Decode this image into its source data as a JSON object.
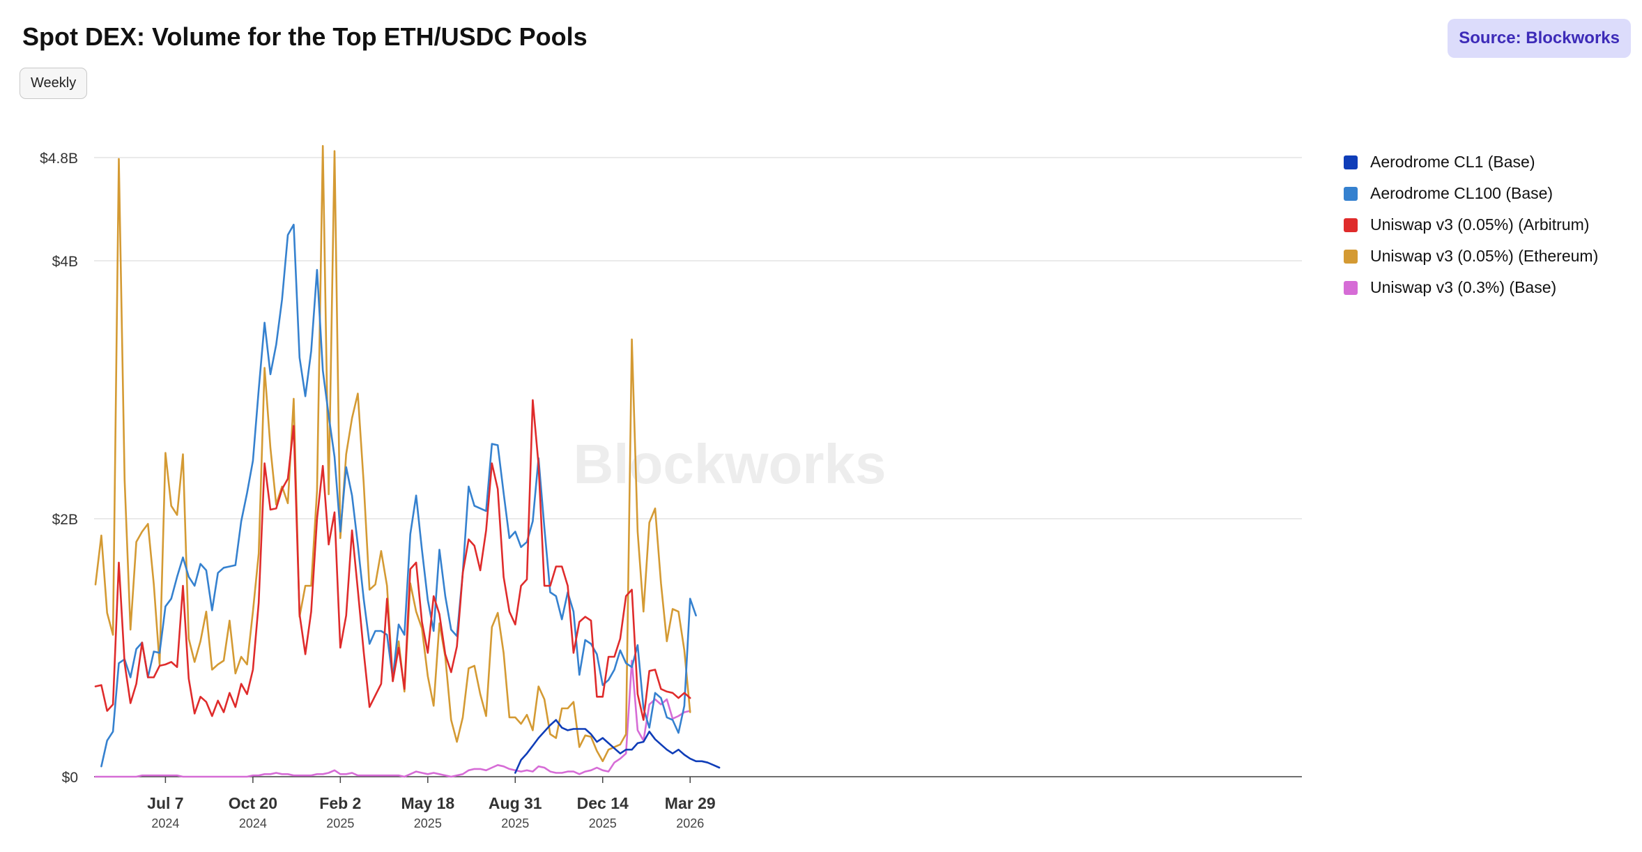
{
  "header": {
    "title": "Spot DEX: Volume for the Top ETH/USDC Pools",
    "source": "Source: Blockworks",
    "frequency_button": "Weekly",
    "watermark": "Blockworks"
  },
  "chart_data": {
    "type": "line",
    "title": "Spot DEX: Volume for the Top ETH/USDC Pools",
    "xlabel": "",
    "ylabel": "",
    "x_start": "2024-04-14",
    "x_interval_days": 7,
    "ylim": [
      0,
      4800000000
    ],
    "yticks": [
      {
        "value": 0,
        "label": "$0"
      },
      {
        "value": 2000000000,
        "label": "$2B"
      },
      {
        "value": 4000000000,
        "label": "$4B"
      },
      {
        "value": 4800000000,
        "label": "$4.8B"
      }
    ],
    "xticks": [
      {
        "date": "2024-07-07",
        "label": "Jul 7",
        "year": "2024"
      },
      {
        "date": "2024-10-20",
        "label": "Oct 20",
        "year": "2024"
      },
      {
        "date": "2025-02-02",
        "label": "Feb 2",
        "year": "2025"
      },
      {
        "date": "2025-05-18",
        "label": "May 18",
        "year": "2025"
      },
      {
        "date": "2025-08-31",
        "label": "Aug 31",
        "year": "2025"
      },
      {
        "date": "2025-12-14",
        "label": "Dec 14",
        "year": "2025"
      },
      {
        "date": "2026-03-29",
        "label": "Mar 29",
        "year": "2026"
      }
    ],
    "grid": true,
    "legend_position": "right",
    "unit": "USD",
    "series": [
      {
        "name": "Aerodrome CL1 (Base)",
        "color": "#0f3db8",
        "start_index": 72,
        "values": [
          0.03,
          0.13,
          0.18,
          0.24,
          0.3,
          0.35,
          0.4,
          0.44,
          0.38,
          0.36,
          0.37,
          0.37,
          0.37,
          0.33,
          0.27,
          0.3,
          0.26,
          0.22,
          0.18,
          0.21,
          0.21,
          0.26,
          0.27,
          0.35,
          0.29,
          0.25,
          0.21,
          0.18,
          0.21,
          0.17,
          0.14,
          0.12,
          0.12,
          0.11,
          0.09,
          0.07
        ]
      },
      {
        "name": "Aerodrome CL100 (Base)",
        "color": "#3581cf",
        "start_index": 1,
        "values": [
          0.08,
          0.28,
          0.35,
          0.88,
          0.91,
          0.77,
          0.99,
          1.04,
          0.77,
          0.97,
          0.96,
          1.32,
          1.38,
          1.55,
          1.7,
          1.55,
          1.48,
          1.65,
          1.6,
          1.29,
          1.58,
          1.62,
          1.63,
          1.64,
          1.98,
          2.2,
          2.45,
          3.0,
          3.52,
          3.12,
          3.35,
          3.7,
          4.2,
          4.28,
          3.25,
          2.95,
          3.3,
          3.93,
          3.15,
          2.8,
          2.48,
          1.9,
          2.4,
          2.18,
          1.8,
          1.38,
          1.03,
          1.13,
          1.13,
          1.1,
          0.76,
          1.18,
          1.1,
          1.88,
          2.18,
          1.76,
          1.37,
          1.13,
          1.76,
          1.4,
          1.14,
          1.09,
          1.58,
          2.25,
          2.1,
          2.08,
          2.06,
          2.58,
          2.57,
          2.2,
          1.85,
          1.9,
          1.78,
          1.82,
          1.98,
          2.47,
          1.93,
          1.43,
          1.4,
          1.22,
          1.43,
          1.28,
          0.79,
          1.06,
          1.03,
          0.95,
          0.71,
          0.75,
          0.83,
          0.98,
          0.88,
          0.85,
          1.02,
          0.53,
          0.38,
          0.65,
          0.61,
          0.46,
          0.44,
          0.34,
          0.55,
          1.38,
          1.25
        ]
      },
      {
        "name": "Uniswap v3 (0.05%) (Arbitrum)",
        "color": "#df2b2b",
        "start_index": 0,
        "values": [
          0.7,
          0.71,
          0.51,
          0.56,
          1.66,
          0.88,
          0.57,
          0.72,
          1.04,
          0.77,
          0.77,
          0.86,
          0.87,
          0.89,
          0.85,
          1.48,
          0.76,
          0.49,
          0.62,
          0.58,
          0.47,
          0.59,
          0.5,
          0.65,
          0.54,
          0.72,
          0.64,
          0.83,
          1.35,
          2.43,
          2.07,
          2.08,
          2.23,
          2.31,
          2.72,
          1.26,
          0.95,
          1.28,
          2.0,
          2.41,
          1.8,
          2.05,
          1.0,
          1.25,
          1.91,
          1.45,
          0.97,
          0.54,
          0.63,
          0.72,
          1.38,
          0.74,
          1.0,
          0.68,
          1.61,
          1.66,
          1.2,
          0.96,
          1.4,
          1.26,
          0.95,
          0.81,
          1.01,
          1.58,
          1.84,
          1.79,
          1.6,
          1.91,
          2.43,
          2.23,
          1.55,
          1.28,
          1.18,
          1.48,
          1.53,
          2.92,
          2.42,
          1.48,
          1.48,
          1.63,
          1.63,
          1.48,
          0.96,
          1.2,
          1.24,
          1.21,
          0.62,
          0.62,
          0.93,
          0.93,
          1.07,
          1.4,
          1.45,
          0.64,
          0.44,
          0.82,
          0.83,
          0.68,
          0.66,
          0.65,
          0.61,
          0.65,
          0.61
        ]
      },
      {
        "name": "Uniswap v3 (0.05%) (Ethereum)",
        "color": "#d49a33",
        "start_index": 0,
        "values": [
          1.49,
          1.87,
          1.27,
          1.1,
          4.79,
          2.3,
          1.14,
          1.82,
          1.9,
          1.96,
          1.49,
          0.87,
          2.51,
          2.1,
          2.03,
          2.5,
          1.07,
          0.89,
          1.05,
          1.28,
          0.83,
          0.87,
          0.9,
          1.21,
          0.8,
          0.93,
          0.87,
          1.28,
          1.73,
          3.17,
          2.55,
          2.11,
          2.25,
          2.12,
          2.93,
          1.24,
          1.48,
          1.48,
          2.22,
          4.89,
          2.19,
          4.85,
          1.85,
          2.5,
          2.78,
          2.97,
          2.28,
          1.45,
          1.49,
          1.75,
          1.48,
          0.74,
          1.05,
          0.66,
          1.5,
          1.28,
          1.15,
          0.78,
          0.55,
          1.19,
          0.93,
          0.44,
          0.27,
          0.46,
          0.84,
          0.86,
          0.64,
          0.47,
          1.16,
          1.27,
          0.96,
          0.46,
          0.46,
          0.41,
          0.48,
          0.36,
          0.7,
          0.6,
          0.33,
          0.3,
          0.53,
          0.53,
          0.58,
          0.23,
          0.32,
          0.31,
          0.2,
          0.12,
          0.21,
          0.23,
          0.25,
          0.33,
          3.39,
          1.9,
          1.28,
          1.97,
          2.08,
          1.5,
          1.05,
          1.3,
          1.28,
          0.98,
          0.5
        ]
      },
      {
        "name": "Uniswap v3 (0.3%) (Base)",
        "color": "#d66cd6",
        "start_index": 0,
        "values": [
          0.0,
          0.0,
          0.0,
          0.0,
          0.0,
          0.0,
          0.0,
          0.0,
          0.01,
          0.01,
          0.01,
          0.01,
          0.01,
          0.01,
          0.01,
          0.0,
          0.0,
          0.0,
          0.0,
          0.0,
          0.0,
          0.0,
          0.0,
          0.0,
          0.0,
          0.0,
          0.0,
          0.01,
          0.01,
          0.02,
          0.02,
          0.03,
          0.02,
          0.02,
          0.01,
          0.01,
          0.01,
          0.01,
          0.02,
          0.02,
          0.03,
          0.05,
          0.02,
          0.02,
          0.03,
          0.01,
          0.01,
          0.01,
          0.01,
          0.01,
          0.01,
          0.01,
          0.01,
          0.0,
          0.02,
          0.04,
          0.03,
          0.02,
          0.03,
          0.02,
          0.01,
          0.0,
          0.01,
          0.02,
          0.05,
          0.06,
          0.06,
          0.05,
          0.07,
          0.09,
          0.08,
          0.06,
          0.05,
          0.04,
          0.05,
          0.04,
          0.08,
          0.07,
          0.04,
          0.03,
          0.03,
          0.04,
          0.04,
          0.02,
          0.04,
          0.05,
          0.07,
          0.05,
          0.04,
          0.11,
          0.14,
          0.18,
          0.9,
          0.36,
          0.28,
          0.56,
          0.6,
          0.56,
          0.6,
          0.45,
          0.47,
          0.5,
          0.51
        ]
      }
    ]
  }
}
